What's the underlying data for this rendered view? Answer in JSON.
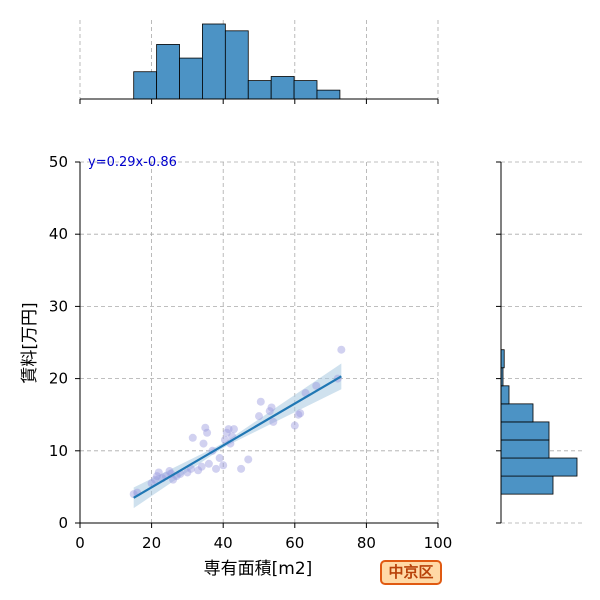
{
  "chart_data": {
    "type": "scatter",
    "xlabel": "専有面積[m2]",
    "ylabel": "賃料[万円]",
    "xlim": [
      0,
      100
    ],
    "ylim": [
      0,
      50
    ],
    "xticks": [
      0,
      20,
      40,
      60,
      80,
      100
    ],
    "yticks": [
      0,
      10,
      20,
      30,
      40,
      50
    ],
    "grid": true,
    "annotation": "y=0.29x-0.86",
    "fit": {
      "slope": 0.29,
      "intercept": -0.86,
      "x_range": [
        15,
        73
      ]
    },
    "points": [
      [
        15,
        4
      ],
      [
        16,
        4.2
      ],
      [
        20,
        5.5
      ],
      [
        21,
        6
      ],
      [
        21.5,
        6.5
      ],
      [
        22,
        7
      ],
      [
        23,
        6.2
      ],
      [
        24,
        6.5
      ],
      [
        25,
        7.2
      ],
      [
        25.5,
        6.8
      ],
      [
        26,
        6
      ],
      [
        27,
        6.5
      ],
      [
        28,
        6.8
      ],
      [
        30,
        7
      ],
      [
        31,
        7.5
      ],
      [
        31.5,
        11.8
      ],
      [
        33,
        7.3
      ],
      [
        34,
        7.8
      ],
      [
        34.5,
        11
      ],
      [
        35,
        13.2
      ],
      [
        35.5,
        12.5
      ],
      [
        36,
        8.2
      ],
      [
        37,
        10
      ],
      [
        38,
        7.5
      ],
      [
        39,
        9
      ],
      [
        40,
        8
      ],
      [
        40.5,
        11.5
      ],
      [
        41,
        12.5
      ],
      [
        41.5,
        13
      ],
      [
        42,
        11
      ],
      [
        42.5,
        12
      ],
      [
        43,
        13
      ],
      [
        45,
        7.5
      ],
      [
        47,
        8.8
      ],
      [
        50,
        14.8
      ],
      [
        50.5,
        16.8
      ],
      [
        53,
        15.5
      ],
      [
        53.5,
        16
      ],
      [
        54,
        14
      ],
      [
        60,
        13.5
      ],
      [
        61,
        15
      ],
      [
        61.5,
        15.2
      ],
      [
        63,
        18
      ],
      [
        66,
        19
      ],
      [
        72,
        20
      ],
      [
        73,
        24
      ]
    ],
    "x_hist": {
      "bin_edges": [
        15,
        21.4,
        27.8,
        34.2,
        40.6,
        47,
        53.4,
        59.8,
        66.2,
        72.6
      ],
      "counts": [
        4,
        8,
        6,
        11,
        10,
        2.7,
        3.3,
        2.7,
        1.3
      ]
    },
    "y_hist": {
      "bin_edges": [
        4,
        6.5,
        9,
        11.5,
        14,
        16.5,
        19,
        21.5,
        24
      ],
      "counts": [
        13,
        19,
        12,
        12,
        8,
        2,
        0.5,
        0.8
      ]
    },
    "colors": {
      "points": "#9999dd",
      "fit_line": "#1f77b4",
      "ci_band": "#a8c8e0",
      "bars": "#4c93c5",
      "grid": "#aaaaaa",
      "annotation": "#0000cc"
    }
  },
  "badge": {
    "label": "中京区"
  }
}
